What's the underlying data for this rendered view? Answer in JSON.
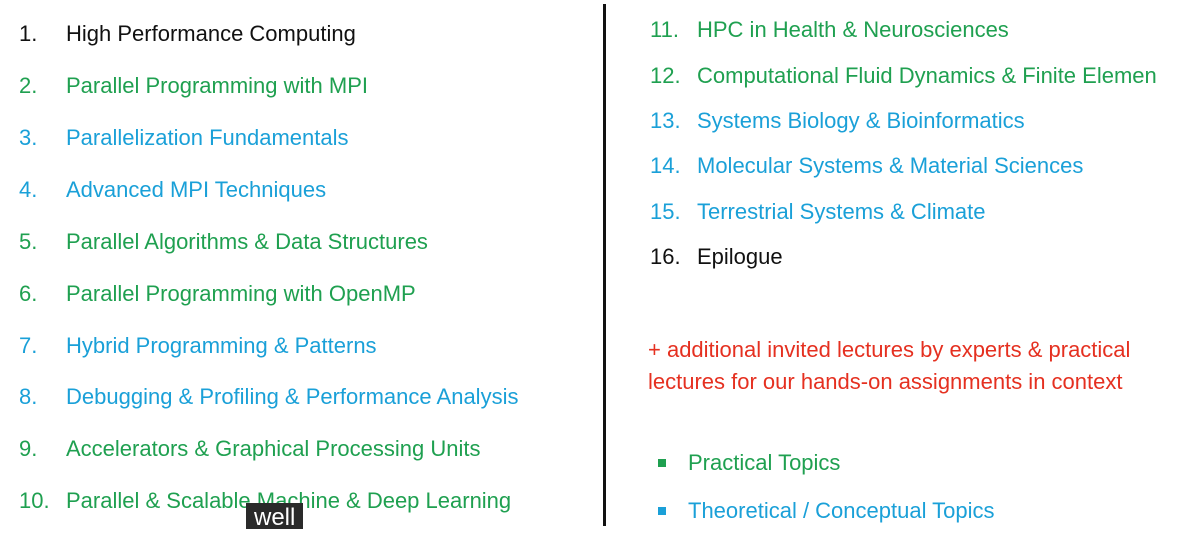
{
  "colors": {
    "black": "#111111",
    "green": "#1fa050",
    "blue": "#1aa0d8",
    "red": "#e53020"
  },
  "left_items": [
    {
      "num": "1.",
      "text": "High Performance Computing",
      "color": "#111111"
    },
    {
      "num": "2.",
      "text": "Parallel Programming with MPI",
      "color": "#1fa050"
    },
    {
      "num": "3.",
      "text": "Parallelization Fundamentals",
      "color": "#1aa0d8"
    },
    {
      "num": "4.",
      "text": "Advanced MPI Techniques",
      "color": "#1aa0d8"
    },
    {
      "num": "5.",
      "text": "Parallel Algorithms & Data Structures",
      "color": "#1fa050"
    },
    {
      "num": "6.",
      "text": "Parallel Programming with OpenMP",
      "color": "#1fa050"
    },
    {
      "num": "7.",
      "text": "Hybrid Programming & Patterns",
      "color": "#1aa0d8"
    },
    {
      "num": "8.",
      "text": "Debugging & Profiling & Performance Analysis",
      "color": "#1aa0d8"
    },
    {
      "num": "9.",
      "text": "Accelerators & Graphical Processing Units",
      "color": "#1fa050"
    },
    {
      "num": "10.",
      "text": "Parallel & Scalable Machine & Deep Learning",
      "color": "#1fa050"
    }
  ],
  "right_items": [
    {
      "num": "11.",
      "text": "HPC in Health & Neurosciences",
      "color": "#1fa050"
    },
    {
      "num": "12.",
      "text": "Computational Fluid Dynamics & Finite Elemen",
      "color": "#1fa050"
    },
    {
      "num": "13.",
      "text": "Systems Biology & Bioinformatics",
      "color": "#1aa0d8"
    },
    {
      "num": "14.",
      "text": "Molecular Systems & Material Sciences",
      "color": "#1aa0d8"
    },
    {
      "num": "15.",
      "text": "Terrestrial Systems & Climate",
      "color": "#1aa0d8"
    },
    {
      "num": "16.",
      "text": "Epilogue",
      "color": "#111111"
    }
  ],
  "note": {
    "line1": "+ additional invited lectures by experts & practical",
    "line2": "lectures for our hands-on assignments in context",
    "color": "#e53020"
  },
  "legend": [
    {
      "label": "Practical Topics",
      "color": "#1fa050"
    },
    {
      "label": "Theoretical / Conceptual Topics",
      "color": "#1aa0d8"
    }
  ],
  "caption": "well"
}
